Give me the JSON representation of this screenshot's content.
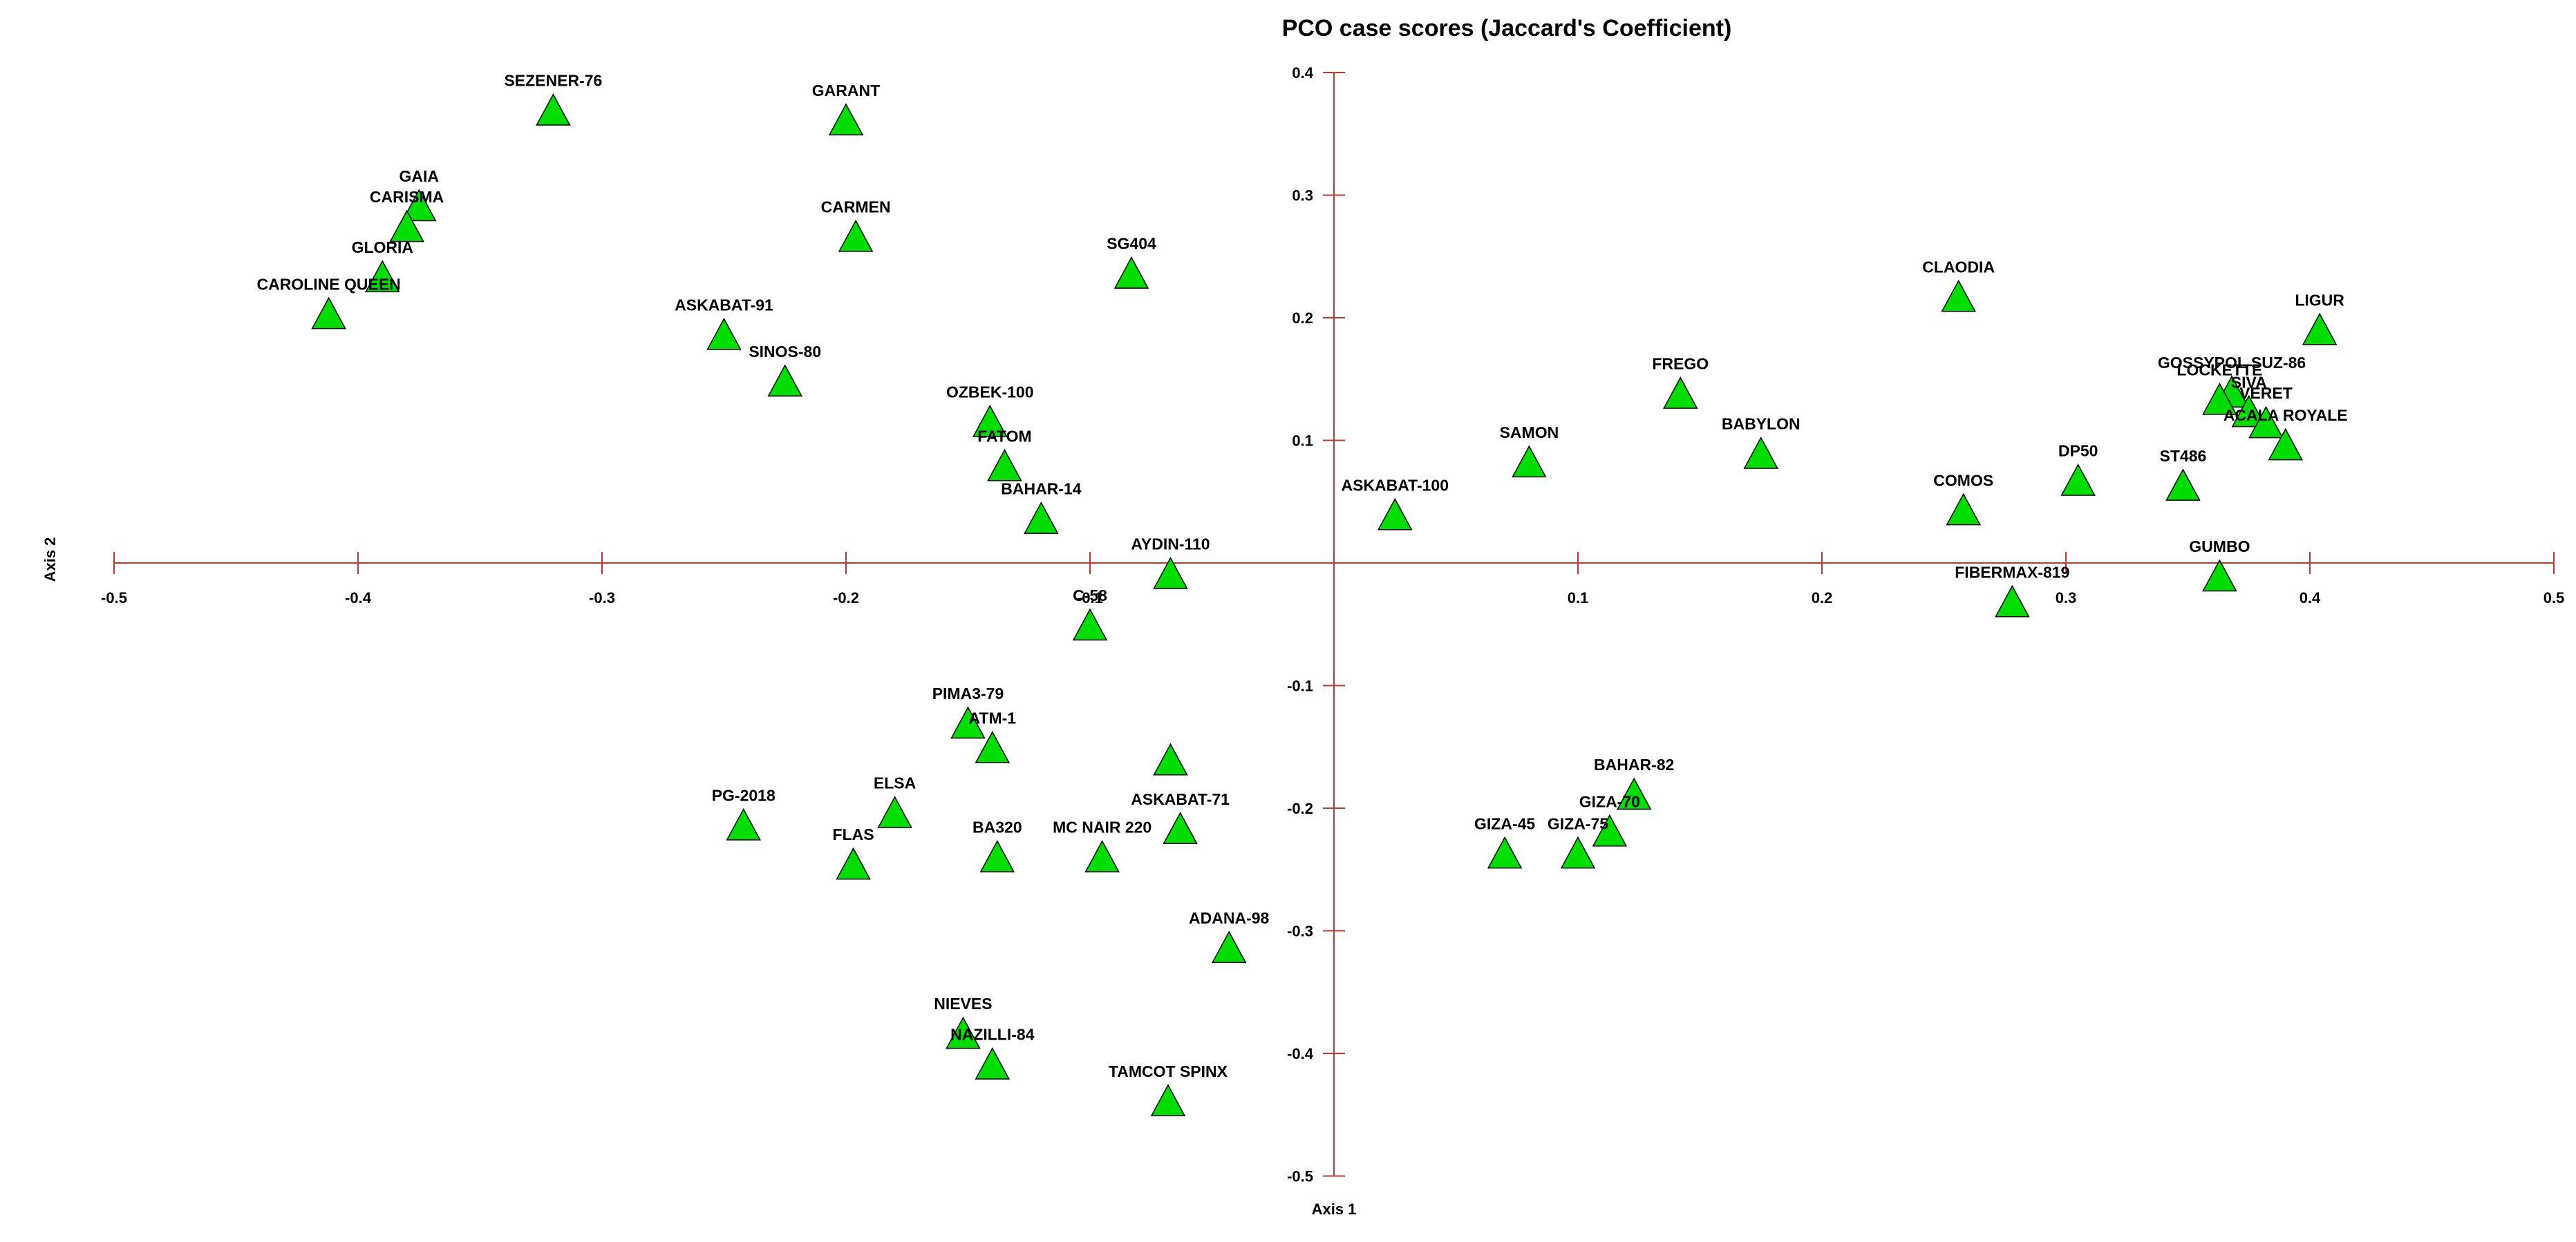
{
  "chart_data": {
    "type": "scatter",
    "title": "PCO case scores (Jaccard's Coefficient)",
    "xlabel": "Axis 1",
    "ylabel": "Axis 2",
    "xlim": [
      -0.5,
      0.5
    ],
    "ylim": [
      -0.5,
      0.4
    ],
    "x_ticks": [
      -0.5,
      -0.4,
      -0.3,
      -0.2,
      -0.1,
      0.1,
      0.2,
      0.3,
      0.4,
      0.5
    ],
    "y_ticks": [
      0.4,
      0.3,
      0.2,
      0.1,
      -0.1,
      -0.2,
      -0.3,
      -0.4,
      -0.5
    ],
    "x_tick_labels": [
      "-0.5",
      "-0.4",
      "-0.3",
      "-0.2",
      "-0.1",
      "0.1",
      "0.2",
      "0.3",
      "0.4",
      "0.5"
    ],
    "y_tick_labels": [
      "0.4",
      "0.3",
      "0.2",
      "0.1",
      "-0.1",
      "-0.2",
      "-0.3",
      "-0.4",
      "-0.5"
    ],
    "grid": false,
    "axis_color": "#c0392b",
    "marker": "triangle",
    "marker_color": "#00dd00",
    "marker_edge_color": "#000000",
    "points": [
      {
        "label": "SEZENER-76",
        "x": -0.32,
        "y": 0.368
      },
      {
        "label": "GARANT",
        "x": -0.2,
        "y": 0.36
      },
      {
        "label": "GAIA",
        "x": -0.375,
        "y": 0.29
      },
      {
        "label": "CARISMA",
        "x": -0.38,
        "y": 0.273
      },
      {
        "label": "GLORIA",
        "x": -0.39,
        "y": 0.232
      },
      {
        "label": "CAROLINE QUEEN",
        "x": -0.412,
        "y": 0.202
      },
      {
        "label": "CARMEN",
        "x": -0.196,
        "y": 0.265
      },
      {
        "label": "SG404",
        "x": -0.083,
        "y": 0.235
      },
      {
        "label": "ASKABAT-91",
        "x": -0.25,
        "y": 0.185
      },
      {
        "label": "SINOS-80",
        "x": -0.225,
        "y": 0.147
      },
      {
        "label": "OZBEK-100",
        "x": -0.141,
        "y": 0.114
      },
      {
        "label": "FATOM",
        "x": -0.135,
        "y": 0.078
      },
      {
        "label": "BAHAR-14",
        "x": -0.12,
        "y": 0.035
      },
      {
        "label": "AYDIN-110",
        "x": -0.067,
        "y": -0.01
      },
      {
        "label": "C-58",
        "x": -0.1,
        "y": -0.052
      },
      {
        "label": "ASKABAT-100",
        "x": 0.025,
        "y": 0.038
      },
      {
        "label": "SAMON",
        "x": 0.08,
        "y": 0.081
      },
      {
        "label": "FREGO",
        "x": 0.142,
        "y": 0.137
      },
      {
        "label": "BABYLON",
        "x": 0.175,
        "y": 0.088
      },
      {
        "label": "CLAODIA",
        "x": 0.256,
        "y": 0.216
      },
      {
        "label": "COMOS",
        "x": 0.258,
        "y": 0.042
      },
      {
        "label": "FIBERMAX-819",
        "x": 0.278,
        "y": -0.033
      },
      {
        "label": "DP50",
        "x": 0.305,
        "y": 0.066
      },
      {
        "label": "ST486",
        "x": 0.348,
        "y": 0.062
      },
      {
        "label": "GUMBO",
        "x": 0.363,
        "y": -0.012
      },
      {
        "label": "LIGUR",
        "x": 0.404,
        "y": 0.189
      },
      {
        "label": "GOSSYPOL SUZ-86",
        "x": 0.368,
        "y": 0.138
      },
      {
        "label": "LOCKETTE",
        "x": 0.363,
        "y": 0.132
      },
      {
        "label": "SIVA",
        "x": 0.375,
        "y": 0.122
      },
      {
        "label": "VERET",
        "x": 0.382,
        "y": 0.113
      },
      {
        "label": "ACALA ROYALE",
        "x": 0.39,
        "y": 0.095
      },
      {
        "label": "PIMA3-79",
        "x": -0.15,
        "y": -0.132
      },
      {
        "label": "ATM-1",
        "x": -0.14,
        "y": -0.152
      },
      {
        "label": "",
        "x": -0.067,
        "y": -0.162
      },
      {
        "label": "ELSA",
        "x": -0.18,
        "y": -0.205
      },
      {
        "label": "PG-2018",
        "x": -0.242,
        "y": -0.215
      },
      {
        "label": "FLAS",
        "x": -0.197,
        "y": -0.247
      },
      {
        "label": "BA320",
        "x": -0.138,
        "y": -0.241
      },
      {
        "label": "MC NAIR 220",
        "x": -0.095,
        "y": -0.241
      },
      {
        "label": "ASKABAT-71",
        "x": -0.063,
        "y": -0.218
      },
      {
        "label": "ADANA-98",
        "x": -0.043,
        "y": -0.315
      },
      {
        "label": "NIEVES",
        "x": -0.152,
        "y": -0.385
      },
      {
        "label": "NAZILLI-84",
        "x": -0.14,
        "y": -0.41
      },
      {
        "label": "TAMCOT SPINX",
        "x": -0.068,
        "y": -0.44
      },
      {
        "label": "BAHAR-82",
        "x": 0.123,
        "y": -0.19
      },
      {
        "label": "GIZA-70",
        "x": 0.113,
        "y": -0.22
      },
      {
        "label": "GIZA-45",
        "x": 0.07,
        "y": -0.238
      },
      {
        "label": "GIZA-75",
        "x": 0.1,
        "y": -0.238
      }
    ]
  }
}
